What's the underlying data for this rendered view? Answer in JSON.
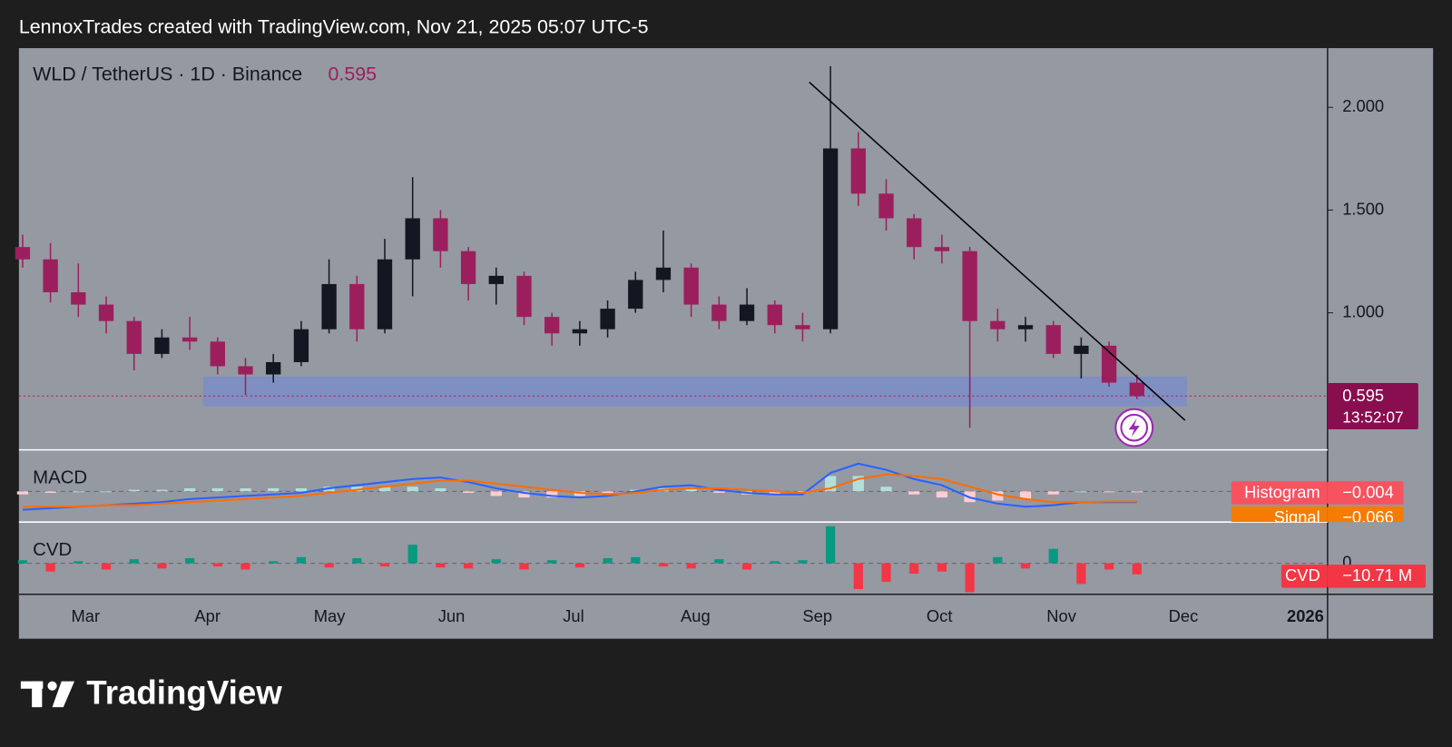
{
  "header": "LennoxTrades created with TradingView.com, Nov 21, 2025 05:07 UTC-5",
  "brand": "TradingView",
  "chart_data": {
    "type": "candlestick",
    "title": "WLD / TetherUS · 1D · Binance",
    "last_price": 0.595,
    "countdown": "13:52:07",
    "x_labels": [
      "Mar",
      "Apr",
      "May",
      "Jun",
      "Jul",
      "Aug",
      "Sep",
      "Oct",
      "Nov",
      "Dec",
      "2026"
    ],
    "open": [
      1.32,
      1.26,
      1.1,
      1.04,
      0.96,
      0.8,
      0.88,
      0.86,
      0.74,
      0.7,
      0.76,
      0.92,
      1.14,
      0.92,
      1.26,
      1.46,
      1.3,
      1.14,
      1.18,
      0.98,
      0.9,
      0.92,
      1.02,
      1.16,
      1.22,
      1.04,
      0.96,
      1.04,
      0.94,
      0.92,
      1.8,
      1.58,
      1.46,
      1.32,
      1.3,
      0.96,
      0.92,
      0.94,
      0.8,
      0.84,
      0.66
    ],
    "high": [
      1.38,
      1.34,
      1.24,
      1.08,
      0.98,
      0.92,
      0.98,
      0.88,
      0.78,
      0.8,
      0.96,
      1.26,
      1.18,
      1.36,
      1.66,
      1.5,
      1.32,
      1.22,
      1.2,
      1.0,
      0.96,
      1.06,
      1.2,
      1.4,
      1.24,
      1.08,
      1.12,
      1.06,
      1.0,
      2.2,
      1.88,
      1.65,
      1.48,
      1.38,
      1.32,
      1.02,
      0.98,
      0.96,
      0.88,
      0.86,
      0.7
    ],
    "low": [
      1.22,
      1.05,
      0.98,
      0.9,
      0.72,
      0.78,
      0.82,
      0.7,
      0.6,
      0.66,
      0.74,
      0.9,
      0.86,
      0.9,
      1.08,
      1.22,
      1.06,
      1.04,
      0.94,
      0.84,
      0.84,
      0.88,
      1.0,
      1.1,
      0.98,
      0.92,
      0.94,
      0.9,
      0.86,
      0.9,
      1.52,
      1.4,
      1.26,
      1.24,
      0.44,
      0.86,
      0.86,
      0.78,
      0.68,
      0.64,
      0.58
    ],
    "close": [
      1.26,
      1.1,
      1.04,
      0.96,
      0.8,
      0.88,
      0.86,
      0.74,
      0.7,
      0.76,
      0.92,
      1.14,
      0.92,
      1.26,
      1.46,
      1.3,
      1.14,
      1.18,
      0.98,
      0.9,
      0.92,
      1.02,
      1.16,
      1.22,
      1.04,
      0.96,
      1.04,
      0.94,
      0.92,
      1.8,
      1.58,
      1.46,
      1.32,
      1.3,
      0.96,
      0.92,
      0.94,
      0.8,
      0.84,
      0.66,
      0.595
    ],
    "up_color": "#131722",
    "down_color": "#9c1f5d",
    "ylim": [
      0.333,
      2.288
    ],
    "yticks": [
      {
        "value": 1,
        "label": "1.000"
      },
      {
        "value": 1.5,
        "label": "1.500"
      },
      {
        "value": 2,
        "label": "2.000"
      }
    ],
    "zone": [
      0.545,
      0.69
    ],
    "trendline": [
      2.122,
      0.477
    ],
    "macd": {
      "title": "MACD",
      "macd": [
        -0.12,
        -0.11,
        -0.1,
        -0.09,
        -0.08,
        -0.07,
        -0.05,
        -0.04,
        -0.03,
        -0.02,
        -0.01,
        0.02,
        0.04,
        0.06,
        0.08,
        0.09,
        0.06,
        0.02,
        -0.01,
        -0.03,
        -0.04,
        -0.03,
        0.0,
        0.03,
        0.04,
        0.01,
        -0.01,
        -0.02,
        -0.02,
        0.12,
        0.18,
        0.14,
        0.08,
        0.04,
        -0.04,
        -0.08,
        -0.1,
        -0.09,
        -0.07,
        -0.07,
        -0.07
      ],
      "signal": [
        -0.1,
        -0.1,
        -0.1,
        -0.09,
        -0.09,
        -0.08,
        -0.07,
        -0.06,
        -0.05,
        -0.04,
        -0.03,
        -0.01,
        0.01,
        0.03,
        0.05,
        0.07,
        0.07,
        0.05,
        0.03,
        0.01,
        -0.01,
        -0.02,
        -0.01,
        0.01,
        0.02,
        0.02,
        0.01,
        0.0,
        -0.01,
        0.02,
        0.08,
        0.11,
        0.1,
        0.08,
        0.03,
        -0.02,
        -0.05,
        -0.07,
        -0.07,
        -0.066,
        -0.066
      ],
      "histogram": [
        -0.02,
        -0.01,
        0,
        0,
        0.01,
        0.01,
        0.02,
        0.02,
        0.02,
        0.02,
        0.02,
        0.03,
        0.03,
        0.03,
        0.03,
        0.02,
        -0.01,
        -0.03,
        -0.04,
        -0.04,
        -0.03,
        -0.01,
        0.01,
        0.02,
        0.02,
        -0.01,
        -0.02,
        -0.02,
        -0.01,
        0.1,
        0.1,
        0.03,
        -0.02,
        -0.04,
        -0.07,
        -0.06,
        -0.05,
        -0.02,
        0,
        -0.004,
        -0.004
      ],
      "ylim": [
        -0.2,
        0.27
      ],
      "legend": [
        {
          "name": "Histogram",
          "value": -0.004,
          "label": "−0.004"
        },
        {
          "name": "Signal",
          "value": -0.066,
          "label": "−0.066"
        }
      ]
    },
    "cvd": {
      "title": "CVD",
      "values": [
        3,
        -8,
        2,
        -6,
        4,
        -5,
        5,
        -3,
        -6,
        2,
        6,
        -4,
        5,
        -3,
        18,
        -4,
        -5,
        4,
        -6,
        3,
        -4,
        5,
        6,
        -3,
        -5,
        4,
        -6,
        2,
        3,
        36,
        -25,
        -18,
        -10,
        -8,
        -28,
        6,
        -5,
        14,
        -20,
        -6,
        -10.71
      ],
      "ylim": [
        -30,
        40
      ],
      "yticks": [
        0
      ],
      "legend": {
        "name": "CVD",
        "value": -10.71,
        "label": "−10.71 M"
      }
    }
  }
}
